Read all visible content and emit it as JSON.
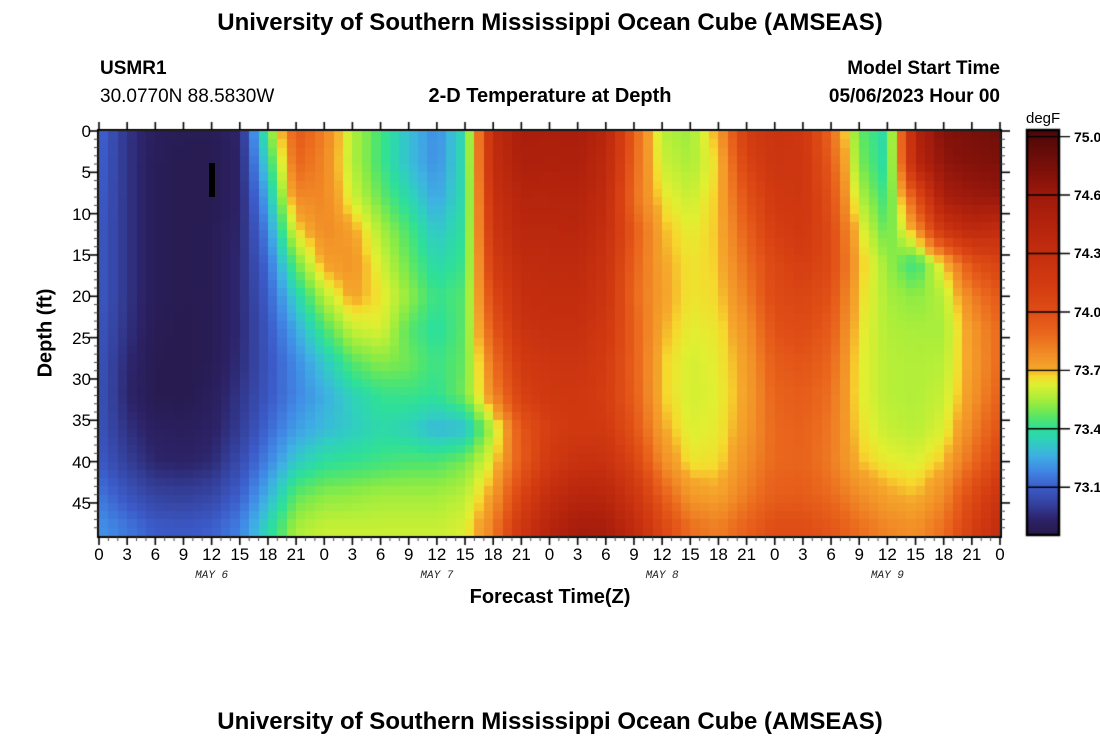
{
  "header": {
    "title": "University of Southern Mississippi Ocean Cube (AMSEAS)",
    "station": "USMR1",
    "coords": "30.0770N  88.5830W",
    "plot_title": "2-D Temperature at Depth",
    "model_start_label": "Model Start Time",
    "model_start_value": "05/06/2023 Hour 00"
  },
  "footer": {
    "title": "University of Southern Mississippi Ocean Cube (AMSEAS)"
  },
  "chart_data": {
    "type": "heatmap",
    "title": "2-D Temperature at Depth",
    "xlabel": "Forecast Time(Z)",
    "ylabel": "Depth (ft)",
    "colorbar_label": "degF",
    "value_range": [
      72.875,
      75.03
    ],
    "x_hours_range": [
      0,
      96
    ],
    "depth_range": [
      0,
      49
    ],
    "x_tick_step_hours": 3,
    "x_minor_step_hours": 1,
    "y_tick_step_ft": 5,
    "y_minor_step_ft": 1,
    "x_tick_labels": [
      "0",
      "3",
      "6",
      "9",
      "12",
      "15",
      "18",
      "21",
      "0",
      "3",
      "6",
      "9",
      "12",
      "15",
      "18",
      "21",
      "0",
      "3",
      "6",
      "9",
      "12",
      "15",
      "18",
      "21",
      "0",
      "3",
      "6",
      "9",
      "12",
      "15",
      "18",
      "21",
      "0"
    ],
    "y_ticks": [
      0,
      5,
      10,
      15,
      20,
      25,
      30,
      35,
      40,
      45
    ],
    "y_tick_labels": [
      "0",
      "5",
      "10",
      "15",
      "20",
      "25",
      "30",
      "35",
      "40",
      "45"
    ],
    "day_labels": [
      {
        "label": "MAY 6",
        "hour": 12
      },
      {
        "label": "MAY 7",
        "hour": 36
      },
      {
        "label": "MAY 8",
        "hour": 60
      },
      {
        "label": "MAY 9",
        "hour": 84
      }
    ],
    "colorbar_ticks": [
      75.0,
      74.688,
      74.375,
      74.062,
      73.75,
      73.438,
      73.125
    ],
    "colorbar_tick_labels": [
      "75.000",
      "74.688",
      "74.375",
      "74.062",
      "73.750",
      "73.438",
      "73.125"
    ],
    "colormap_stops": [
      [
        72.875,
        "#271a4d"
      ],
      [
        72.95,
        "#2c2266"
      ],
      [
        73.02,
        "#333c94"
      ],
      [
        73.125,
        "#3c5cca"
      ],
      [
        73.22,
        "#418ae6"
      ],
      [
        73.3,
        "#3eb2e2"
      ],
      [
        73.37,
        "#30cfc0"
      ],
      [
        73.438,
        "#2ee098"
      ],
      [
        73.5,
        "#55e56a"
      ],
      [
        73.56,
        "#8aeb45"
      ],
      [
        73.62,
        "#b8ef38"
      ],
      [
        73.68,
        "#e2ef31"
      ],
      [
        73.72,
        "#f6d92d"
      ],
      [
        73.76,
        "#f5a72b"
      ],
      [
        73.85,
        "#f18a26"
      ],
      [
        73.95,
        "#ea671d"
      ],
      [
        74.062,
        "#e04f16"
      ],
      [
        74.2,
        "#d43d11"
      ],
      [
        74.375,
        "#c52f0f"
      ],
      [
        74.55,
        "#b2220c"
      ],
      [
        74.688,
        "#9f1a0d"
      ],
      [
        74.8,
        "#83120a"
      ],
      [
        74.92,
        "#670d09"
      ],
      [
        75.03,
        "#4d0808"
      ]
    ],
    "grid_hours": [
      0,
      3,
      6,
      9,
      12,
      15,
      18,
      21,
      24,
      27,
      30,
      33,
      36,
      39,
      42,
      45,
      48,
      51,
      54,
      57,
      60,
      63,
      66,
      69,
      72,
      75,
      78,
      81,
      84,
      87,
      90,
      93,
      96
    ],
    "grid_depths": [
      0,
      4,
      8,
      12,
      16,
      20,
      24,
      28,
      32,
      36,
      40,
      44,
      48
    ],
    "grid": [
      [
        73.15,
        73.0,
        72.92,
        72.9,
        72.9,
        72.96,
        73.5,
        74.02,
        73.88,
        73.62,
        73.47,
        73.33,
        73.22,
        73.42,
        74.42,
        74.62,
        74.6,
        74.62,
        74.5,
        73.98,
        73.62,
        73.58,
        73.78,
        74.22,
        74.32,
        74.28,
        73.95,
        73.52,
        73.4,
        74.55,
        74.8,
        74.85,
        74.88
      ],
      [
        73.14,
        73.0,
        72.91,
        72.89,
        72.89,
        72.95,
        73.4,
        73.96,
        73.86,
        73.62,
        73.47,
        73.33,
        73.23,
        73.42,
        74.4,
        74.58,
        74.57,
        74.58,
        74.46,
        73.96,
        73.65,
        73.6,
        73.72,
        74.15,
        74.3,
        74.28,
        74.0,
        73.55,
        73.4,
        74.48,
        74.75,
        74.8,
        74.82
      ],
      [
        73.13,
        73.0,
        72.91,
        72.89,
        72.89,
        72.95,
        73.3,
        73.85,
        73.86,
        73.66,
        73.52,
        73.4,
        73.27,
        73.42,
        74.35,
        74.52,
        74.52,
        74.53,
        74.42,
        73.93,
        73.7,
        73.64,
        73.74,
        74.05,
        74.25,
        74.28,
        74.05,
        73.62,
        73.45,
        74.05,
        74.62,
        74.7,
        74.72
      ],
      [
        73.12,
        73.0,
        72.91,
        72.89,
        72.9,
        72.96,
        73.22,
        73.7,
        73.85,
        73.78,
        73.6,
        73.48,
        73.34,
        73.44,
        74.3,
        74.48,
        74.48,
        74.49,
        74.38,
        74.0,
        73.75,
        73.68,
        73.74,
        73.98,
        74.2,
        74.25,
        74.1,
        73.7,
        73.5,
        73.8,
        74.3,
        74.45,
        74.4
      ],
      [
        73.12,
        73.0,
        72.91,
        72.89,
        72.9,
        72.97,
        73.16,
        73.52,
        73.78,
        73.82,
        73.66,
        73.52,
        73.4,
        73.46,
        74.22,
        74.42,
        74.43,
        74.44,
        74.33,
        73.97,
        73.77,
        73.7,
        73.73,
        73.93,
        74.12,
        74.2,
        74.1,
        73.75,
        73.58,
        73.45,
        73.72,
        74.05,
        74.15
      ],
      [
        73.12,
        73.0,
        72.91,
        72.89,
        72.9,
        72.97,
        73.13,
        73.38,
        73.62,
        73.78,
        73.7,
        73.57,
        73.45,
        73.5,
        74.12,
        74.38,
        74.4,
        74.4,
        74.3,
        73.95,
        73.78,
        73.7,
        73.72,
        73.88,
        74.1,
        74.14,
        74.05,
        73.72,
        73.6,
        73.56,
        73.62,
        73.88,
        74.02
      ],
      [
        73.11,
        72.99,
        72.9,
        72.88,
        72.9,
        72.97,
        73.11,
        73.28,
        73.48,
        73.64,
        73.67,
        73.5,
        73.42,
        73.51,
        74.02,
        74.32,
        74.36,
        74.36,
        74.26,
        73.98,
        73.76,
        73.68,
        73.7,
        73.82,
        74.05,
        74.09,
        74.0,
        73.7,
        73.61,
        73.6,
        73.6,
        73.8,
        73.95
      ],
      [
        73.1,
        72.97,
        72.89,
        72.88,
        72.9,
        72.98,
        73.1,
        73.22,
        73.35,
        73.5,
        73.56,
        73.53,
        73.46,
        73.52,
        73.92,
        74.24,
        74.3,
        74.31,
        74.22,
        73.98,
        73.73,
        73.66,
        73.69,
        73.79,
        74.0,
        74.04,
        73.95,
        73.69,
        73.62,
        73.61,
        73.62,
        73.79,
        73.95
      ],
      [
        73.1,
        72.96,
        72.89,
        72.88,
        72.92,
        73.0,
        73.11,
        73.21,
        73.29,
        73.38,
        73.45,
        73.46,
        73.44,
        73.54,
        73.85,
        74.17,
        74.26,
        74.27,
        74.2,
        73.99,
        73.73,
        73.66,
        73.68,
        73.78,
        73.97,
        74.0,
        73.92,
        73.69,
        73.62,
        73.61,
        73.64,
        73.81,
        73.98
      ],
      [
        73.1,
        72.99,
        72.93,
        72.92,
        72.94,
        73.02,
        73.15,
        73.26,
        73.32,
        73.36,
        73.41,
        73.38,
        73.31,
        73.33,
        73.62,
        74.02,
        74.2,
        74.25,
        74.24,
        74.04,
        73.77,
        73.67,
        73.69,
        73.8,
        73.95,
        73.98,
        73.9,
        73.71,
        73.64,
        73.62,
        73.67,
        73.86,
        74.05
      ],
      [
        73.12,
        73.03,
        72.96,
        72.95,
        72.97,
        73.07,
        73.21,
        73.36,
        73.43,
        73.45,
        73.47,
        73.49,
        73.49,
        73.54,
        73.7,
        74.0,
        74.25,
        74.35,
        74.34,
        74.14,
        73.84,
        73.7,
        73.71,
        73.84,
        73.95,
        73.97,
        73.89,
        73.74,
        73.69,
        73.67,
        73.74,
        73.94,
        74.15
      ],
      [
        73.18,
        73.1,
        73.04,
        73.03,
        73.05,
        73.13,
        73.3,
        73.51,
        73.56,
        73.57,
        73.59,
        73.59,
        73.59,
        73.62,
        73.79,
        74.14,
        74.4,
        74.5,
        74.49,
        74.29,
        73.99,
        73.8,
        73.77,
        73.89,
        73.99,
        74.0,
        73.94,
        73.84,
        73.77,
        73.74,
        73.84,
        74.09,
        74.3
      ],
      [
        73.24,
        73.18,
        73.12,
        73.11,
        73.13,
        73.2,
        73.4,
        73.6,
        73.64,
        73.64,
        73.64,
        73.64,
        73.64,
        73.67,
        73.88,
        74.28,
        74.52,
        74.63,
        74.62,
        74.43,
        74.13,
        73.93,
        73.88,
        73.98,
        74.08,
        74.08,
        74.03,
        73.93,
        73.86,
        73.83,
        73.93,
        74.18,
        74.42
      ]
    ],
    "obs_marker": {
      "hour": 12,
      "depth_top_ft": 3.9,
      "depth_bottom_ft": 8.0
    }
  }
}
